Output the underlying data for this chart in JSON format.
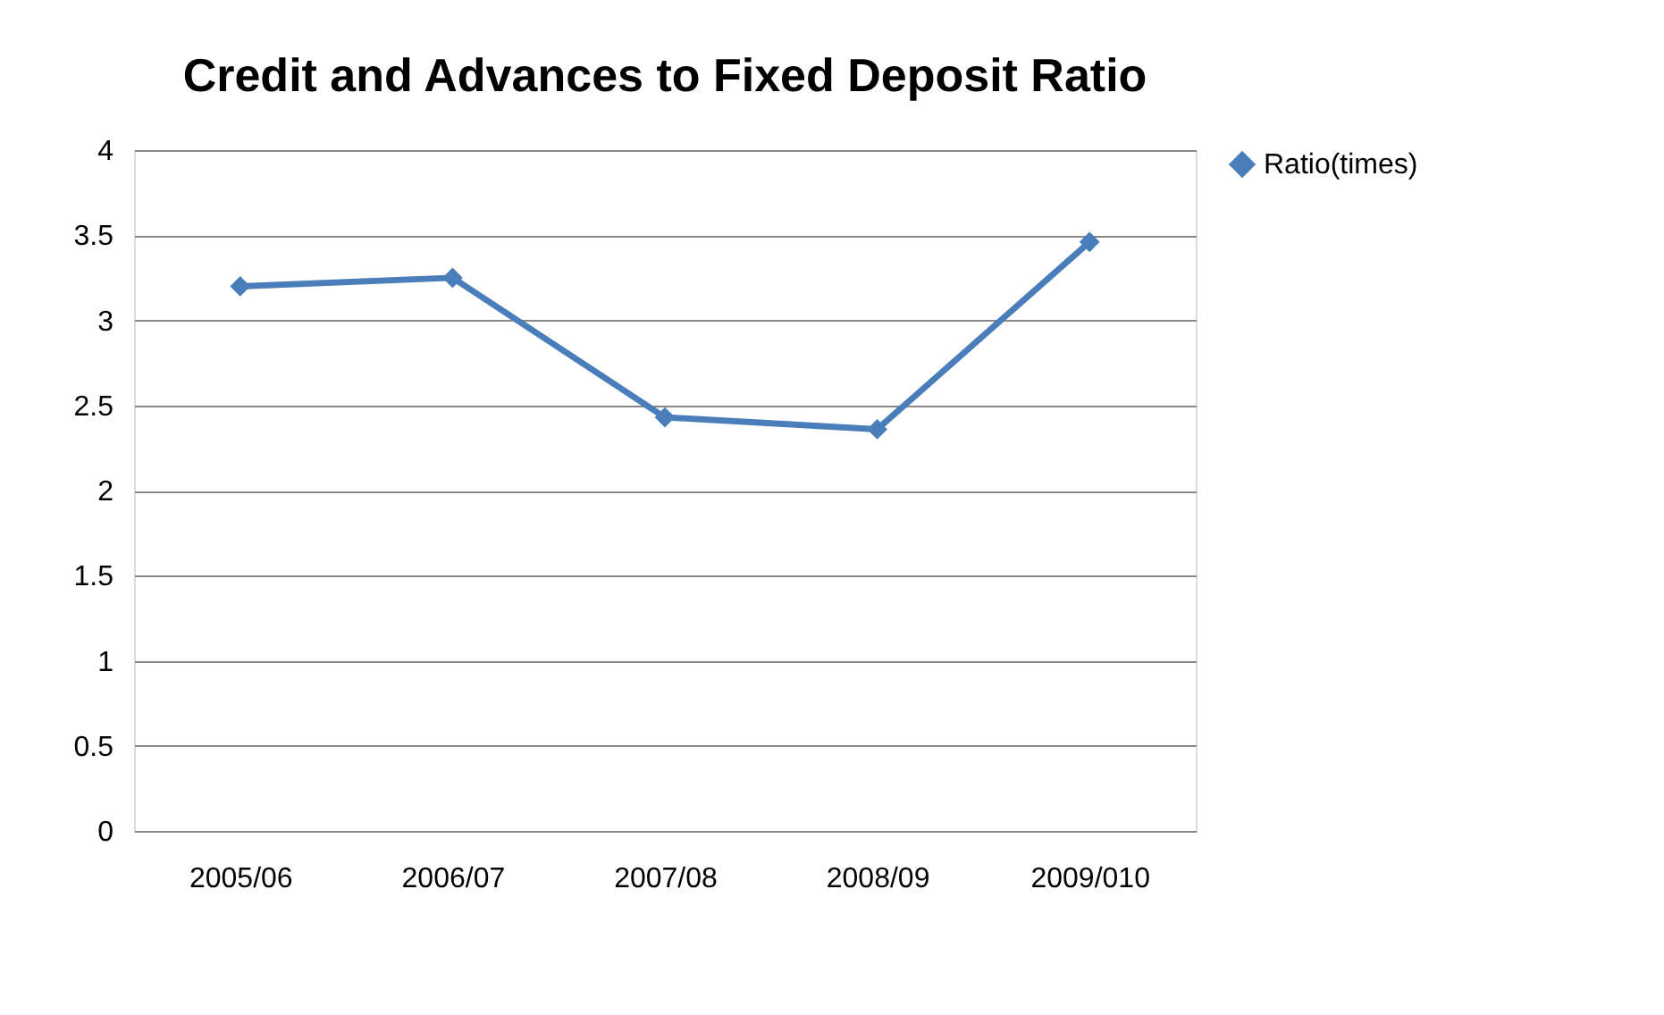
{
  "chart_data": {
    "type": "line",
    "title": "Credit and Advances to Fixed Deposit Ratio",
    "categories": [
      "2005/06",
      "2006/07",
      "2007/08",
      "2008/09",
      "2009/010"
    ],
    "series": [
      {
        "name": "Ratio(times)",
        "color": "#4a7ebb",
        "values": [
          3.2,
          3.25,
          2.43,
          2.36,
          3.46
        ]
      }
    ],
    "ylim": [
      0,
      4
    ],
    "yticks": [
      0,
      0.5,
      1,
      1.5,
      2,
      2.5,
      3,
      3.5,
      4
    ],
    "grid": "y",
    "legend": "right",
    "marker": "diamond",
    "line_style": "solid"
  }
}
